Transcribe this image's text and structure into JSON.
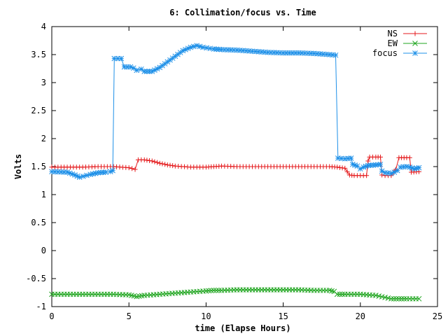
{
  "chart_data": {
    "type": "line",
    "title": "6: Collimation/focus vs. Time",
    "xlabel": "time (Elapse Hours)",
    "ylabel": "Volts",
    "xlim": [
      0,
      25
    ],
    "ylim": [
      -1,
      4
    ],
    "xticks": [
      0,
      5,
      10,
      15,
      20,
      25
    ],
    "yticks": [
      -1,
      -0.5,
      0,
      0.5,
      1,
      1.5,
      2,
      2.5,
      3,
      3.5,
      4
    ],
    "xtick_labels": [
      "0",
      "5",
      "10",
      "15",
      "20",
      "25"
    ],
    "ytick_labels": [
      "-1",
      "-0.5",
      "0",
      "0.5",
      "1",
      "1.5",
      "2",
      "2.5",
      "3",
      "3.5",
      "4"
    ],
    "legend_position": "top-right",
    "grid": false,
    "series": [
      {
        "name": "NS",
        "color": "#e41a1c",
        "marker": "plus",
        "points": [
          [
            0,
            1.49
          ],
          [
            1,
            1.49
          ],
          [
            2,
            1.49
          ],
          [
            3,
            1.5
          ],
          [
            4,
            1.5
          ],
          [
            5,
            1.48
          ],
          [
            5.4,
            1.45
          ],
          [
            5.6,
            1.62
          ],
          [
            6,
            1.62
          ],
          [
            6.5,
            1.6
          ],
          [
            7,
            1.56
          ],
          [
            7.5,
            1.53
          ],
          [
            8,
            1.51
          ],
          [
            9,
            1.49
          ],
          [
            10,
            1.49
          ],
          [
            10.5,
            1.5
          ],
          [
            11,
            1.51
          ],
          [
            12,
            1.5
          ],
          [
            13,
            1.5
          ],
          [
            14,
            1.5
          ],
          [
            15,
            1.5
          ],
          [
            16,
            1.5
          ],
          [
            17,
            1.5
          ],
          [
            18,
            1.5
          ],
          [
            18.5,
            1.49
          ],
          [
            19,
            1.47
          ],
          [
            19.3,
            1.35
          ],
          [
            19.6,
            1.34
          ],
          [
            20,
            1.34
          ],
          [
            20.4,
            1.34
          ],
          [
            20.5,
            1.6
          ],
          [
            20.6,
            1.67
          ],
          [
            21,
            1.67
          ],
          [
            21.3,
            1.67
          ],
          [
            21.4,
            1.35
          ],
          [
            21.6,
            1.34
          ],
          [
            22,
            1.34
          ],
          [
            22.3,
            1.45
          ],
          [
            22.5,
            1.66
          ],
          [
            23,
            1.66
          ],
          [
            23.2,
            1.66
          ],
          [
            23.3,
            1.4
          ],
          [
            23.8,
            1.41
          ]
        ]
      },
      {
        "name": "EW",
        "color": "#1fa51f",
        "marker": "cross",
        "points": [
          [
            0,
            -0.78
          ],
          [
            2,
            -0.78
          ],
          [
            4,
            -0.78
          ],
          [
            5,
            -0.79
          ],
          [
            5.5,
            -0.82
          ],
          [
            6,
            -0.8
          ],
          [
            7,
            -0.78
          ],
          [
            8,
            -0.76
          ],
          [
            9,
            -0.74
          ],
          [
            10,
            -0.72
          ],
          [
            10.5,
            -0.71
          ],
          [
            11,
            -0.71
          ],
          [
            12,
            -0.7
          ],
          [
            14,
            -0.7
          ],
          [
            16,
            -0.7
          ],
          [
            17,
            -0.71
          ],
          [
            18,
            -0.71
          ],
          [
            18.3,
            -0.73
          ],
          [
            18.5,
            -0.78
          ],
          [
            19,
            -0.78
          ],
          [
            20,
            -0.78
          ],
          [
            21,
            -0.8
          ],
          [
            22,
            -0.86
          ],
          [
            22.5,
            -0.86
          ],
          [
            23,
            -0.86
          ],
          [
            23.8,
            -0.86
          ]
        ]
      },
      {
        "name": "focus",
        "color": "#1e90e8",
        "marker": "star",
        "points": [
          [
            0,
            1.41
          ],
          [
            1,
            1.4
          ],
          [
            1.5,
            1.35
          ],
          [
            1.8,
            1.31
          ],
          [
            2.5,
            1.36
          ],
          [
            3,
            1.39
          ],
          [
            3.5,
            1.4
          ],
          [
            3.8,
            1.41
          ],
          [
            3.95,
            1.43
          ],
          [
            4.05,
            3.43
          ],
          [
            4.5,
            3.43
          ],
          [
            4.7,
            3.28
          ],
          [
            5.1,
            3.28
          ],
          [
            5.3,
            3.26
          ],
          [
            5.5,
            3.22
          ],
          [
            5.8,
            3.24
          ],
          [
            6,
            3.2
          ],
          [
            6.5,
            3.2
          ],
          [
            7,
            3.27
          ],
          [
            7.5,
            3.37
          ],
          [
            8,
            3.47
          ],
          [
            8.5,
            3.57
          ],
          [
            9,
            3.63
          ],
          [
            9.4,
            3.66
          ],
          [
            9.8,
            3.63
          ],
          [
            10.5,
            3.6
          ],
          [
            11,
            3.59
          ],
          [
            12,
            3.58
          ],
          [
            13,
            3.56
          ],
          [
            14,
            3.54
          ],
          [
            15,
            3.53
          ],
          [
            16,
            3.53
          ],
          [
            17,
            3.52
          ],
          [
            18,
            3.5
          ],
          [
            18.4,
            3.49
          ],
          [
            18.55,
            1.65
          ],
          [
            19,
            1.64
          ],
          [
            19.4,
            1.65
          ],
          [
            19.5,
            1.54
          ],
          [
            19.8,
            1.51
          ],
          [
            20,
            1.46
          ],
          [
            20.2,
            1.49
          ],
          [
            20.5,
            1.52
          ],
          [
            21,
            1.53
          ],
          [
            21.3,
            1.54
          ],
          [
            21.4,
            1.42
          ],
          [
            21.6,
            1.39
          ],
          [
            22,
            1.38
          ],
          [
            22.2,
            1.4
          ],
          [
            22.4,
            1.43
          ],
          [
            22.6,
            1.49
          ],
          [
            23,
            1.5
          ],
          [
            23.2,
            1.49
          ],
          [
            23.5,
            1.46
          ],
          [
            23.8,
            1.48
          ]
        ]
      }
    ]
  }
}
